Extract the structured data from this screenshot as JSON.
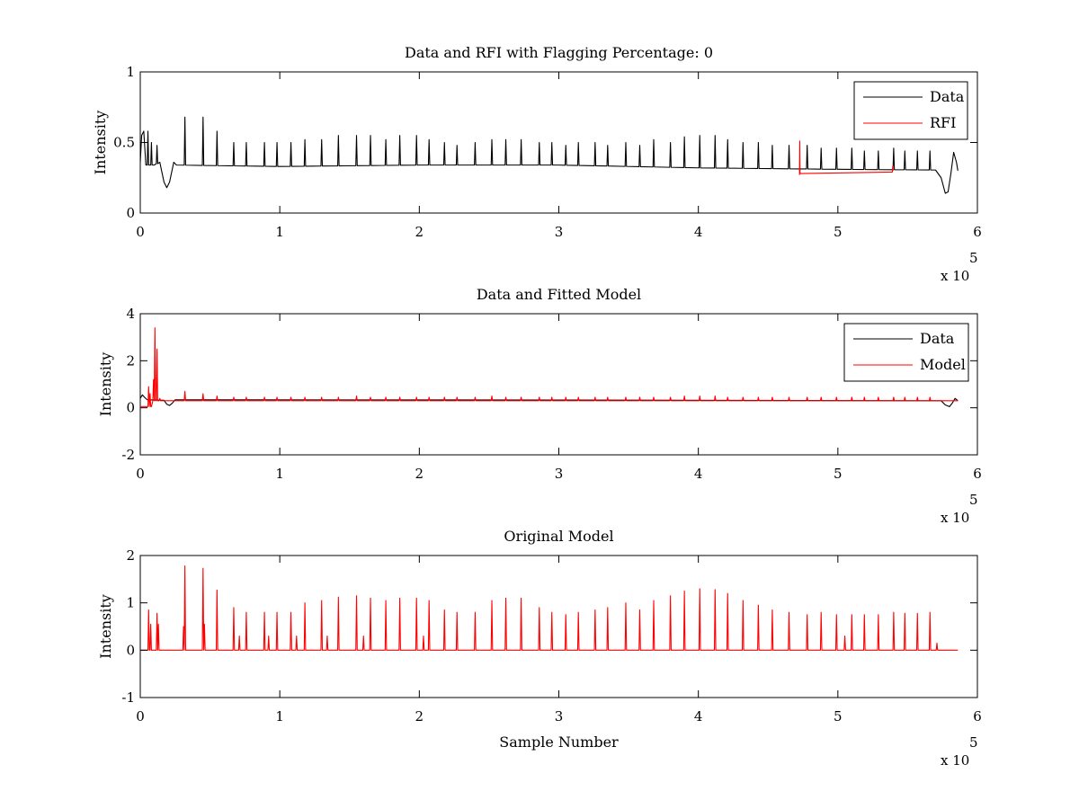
{
  "chart_data": [
    {
      "type": "line",
      "title": "Data and RFI with Flagging Percentage: 0",
      "xlabel": "",
      "ylabel": "Intensity",
      "xlim": [
        0,
        600000
      ],
      "ylim": [
        0,
        1
      ],
      "x_ticks": [
        0,
        1,
        2,
        3,
        4,
        5,
        6
      ],
      "x_tick_labels": [
        "0",
        "1",
        "2",
        "3",
        "4",
        "5",
        "6"
      ],
      "y_ticks": [
        0,
        0.5,
        1
      ],
      "y_tick_labels": [
        "0",
        "0.5",
        "1"
      ],
      "x_multiplier_label": "x 10",
      "x_multiplier_exponent": "5",
      "legend": {
        "placement": "top-right",
        "entries": [
          "Data",
          "RFI"
        ]
      },
      "series": [
        {
          "name": "Data",
          "color": "#000000",
          "baseline": [
            [
              0,
              0.36
            ],
            [
              1000,
              0.55
            ],
            [
              2500,
              0.58
            ],
            [
              4000,
              0.34
            ],
            [
              10000,
              0.34
            ],
            [
              14000,
              0.36
            ],
            [
              17000,
              0.22
            ],
            [
              19000,
              0.18
            ],
            [
              21000,
              0.22
            ],
            [
              24000,
              0.36
            ],
            [
              26000,
              0.34
            ],
            [
              100000,
              0.33
            ],
            [
              200000,
              0.34
            ],
            [
              300000,
              0.34
            ],
            [
              400000,
              0.32
            ],
            [
              500000,
              0.31
            ],
            [
              570000,
              0.305
            ],
            [
              574000,
              0.25
            ],
            [
              577000,
              0.14
            ],
            [
              579000,
              0.15
            ],
            [
              581000,
              0.28
            ],
            [
              583000,
              0.43
            ],
            [
              585000,
              0.36
            ],
            [
              586000,
              0.3
            ]
          ],
          "spikes": [
            [
              5500,
              0.58
            ],
            [
              8000,
              0.5
            ],
            [
              12000,
              0.48
            ],
            [
              32000,
              0.68
            ],
            [
              45000,
              0.68
            ],
            [
              55000,
              0.58
            ],
            [
              67000,
              0.5
            ],
            [
              76000,
              0.5
            ],
            [
              89000,
              0.5
            ],
            [
              98000,
              0.5
            ],
            [
              108000,
              0.5
            ],
            [
              118000,
              0.52
            ],
            [
              130000,
              0.52
            ],
            [
              142000,
              0.55
            ],
            [
              155000,
              0.55
            ],
            [
              165000,
              0.55
            ],
            [
              176000,
              0.52
            ],
            [
              186000,
              0.55
            ],
            [
              198000,
              0.55
            ],
            [
              207000,
              0.52
            ],
            [
              218000,
              0.5
            ],
            [
              227000,
              0.48
            ],
            [
              240000,
              0.5
            ],
            [
              252000,
              0.52
            ],
            [
              262000,
              0.52
            ],
            [
              273000,
              0.52
            ],
            [
              286000,
              0.5
            ],
            [
              295000,
              0.5
            ],
            [
              305000,
              0.48
            ],
            [
              314000,
              0.5
            ],
            [
              326000,
              0.5
            ],
            [
              335000,
              0.48
            ],
            [
              348000,
              0.5
            ],
            [
              358000,
              0.48
            ],
            [
              368000,
              0.52
            ],
            [
              380000,
              0.5
            ],
            [
              390000,
              0.54
            ],
            [
              401000,
              0.55
            ],
            [
              412000,
              0.55
            ],
            [
              421000,
              0.52
            ],
            [
              432000,
              0.5
            ],
            [
              443000,
              0.5
            ],
            [
              453000,
              0.48
            ],
            [
              465000,
              0.48
            ],
            [
              478000,
              0.48
            ],
            [
              488000,
              0.46
            ],
            [
              499000,
              0.46
            ],
            [
              510000,
              0.46
            ],
            [
              519000,
              0.44
            ],
            [
              529000,
              0.44
            ],
            [
              540000,
              0.46
            ],
            [
              548000,
              0.44
            ],
            [
              557000,
              0.44
            ],
            [
              566000,
              0.44
            ]
          ]
        },
        {
          "name": "RFI",
          "color": "#ff0000",
          "points": [
            [
              472500,
              0.27
            ],
            [
              472700,
              0.51
            ],
            [
              472900,
              0.28
            ],
            [
              539000,
              0.29
            ],
            [
              539300,
              0.33
            ],
            [
              539600,
              0.3
            ]
          ]
        }
      ]
    },
    {
      "type": "line",
      "title": "Data and Fitted Model",
      "xlabel": "",
      "ylabel": "Intensity",
      "xlim": [
        0,
        600000
      ],
      "ylim": [
        -2,
        4
      ],
      "x_ticks": [
        0,
        1,
        2,
        3,
        4,
        5,
        6
      ],
      "x_tick_labels": [
        "0",
        "1",
        "2",
        "3",
        "4",
        "5",
        "6"
      ],
      "y_ticks": [
        -2,
        0,
        2,
        4
      ],
      "y_tick_labels": [
        "-2",
        "0",
        "2",
        "4"
      ],
      "x_multiplier_label": "x 10",
      "x_multiplier_exponent": "5",
      "legend": {
        "placement": "top-right",
        "entries": [
          "Data",
          "Model"
        ]
      },
      "series": [
        {
          "name": "Data",
          "color": "#000000",
          "baseline": [
            [
              0,
              0.4
            ],
            [
              1500,
              0.55
            ],
            [
              3000,
              0.45
            ],
            [
              5000,
              0.34
            ],
            [
              17000,
              0.32
            ],
            [
              19000,
              0.15
            ],
            [
              21000,
              0.1
            ],
            [
              23000,
              0.2
            ],
            [
              25000,
              0.34
            ],
            [
              300000,
              0.33
            ],
            [
              574000,
              0.3
            ],
            [
              577000,
              0.12
            ],
            [
              580000,
              0.05
            ],
            [
              582000,
              0.2
            ],
            [
              584000,
              0.4
            ],
            [
              586000,
              0.3
            ]
          ]
        },
        {
          "name": "Model",
          "color": "#ff0000",
          "baseline": [
            [
              0,
              0.05
            ],
            [
              8000,
              0.05
            ],
            [
              9000,
              0.3
            ],
            [
              586000,
              0.3
            ]
          ],
          "spikes": [
            [
              6000,
              0.9
            ],
            [
              7000,
              0.6
            ],
            [
              9500,
              1.2
            ],
            [
              10500,
              3.4
            ],
            [
              12000,
              2.5
            ],
            [
              14000,
              0.4
            ],
            [
              32000,
              0.7
            ],
            [
              45000,
              0.6
            ],
            [
              55000,
              0.5
            ],
            [
              67000,
              0.45
            ],
            [
              76000,
              0.45
            ],
            [
              89000,
              0.45
            ],
            [
              98000,
              0.45
            ],
            [
              108000,
              0.45
            ],
            [
              118000,
              0.45
            ],
            [
              130000,
              0.45
            ],
            [
              142000,
              0.45
            ],
            [
              155000,
              0.5
            ],
            [
              165000,
              0.45
            ],
            [
              176000,
              0.45
            ],
            [
              186000,
              0.45
            ],
            [
              198000,
              0.45
            ],
            [
              207000,
              0.45
            ],
            [
              218000,
              0.45
            ],
            [
              227000,
              0.45
            ],
            [
              240000,
              0.45
            ],
            [
              252000,
              0.5
            ],
            [
              262000,
              0.45
            ],
            [
              273000,
              0.45
            ],
            [
              286000,
              0.45
            ],
            [
              295000,
              0.45
            ],
            [
              305000,
              0.45
            ],
            [
              314000,
              0.45
            ],
            [
              326000,
              0.45
            ],
            [
              335000,
              0.45
            ],
            [
              348000,
              0.45
            ],
            [
              358000,
              0.45
            ],
            [
              368000,
              0.45
            ],
            [
              380000,
              0.45
            ],
            [
              390000,
              0.5
            ],
            [
              401000,
              0.5
            ],
            [
              412000,
              0.5
            ],
            [
              421000,
              0.45
            ],
            [
              432000,
              0.45
            ],
            [
              443000,
              0.45
            ],
            [
              453000,
              0.45
            ],
            [
              465000,
              0.45
            ],
            [
              478000,
              0.45
            ],
            [
              488000,
              0.45
            ],
            [
              499000,
              0.45
            ],
            [
              510000,
              0.45
            ],
            [
              519000,
              0.45
            ],
            [
              529000,
              0.45
            ],
            [
              540000,
              0.45
            ],
            [
              548000,
              0.45
            ],
            [
              557000,
              0.45
            ],
            [
              566000,
              0.45
            ]
          ]
        }
      ]
    },
    {
      "type": "line",
      "title": "Original Model",
      "xlabel": "Sample Number",
      "ylabel": "Intensity",
      "xlim": [
        0,
        600000
      ],
      "ylim": [
        -1,
        2
      ],
      "x_ticks": [
        0,
        1,
        2,
        3,
        4,
        5,
        6
      ],
      "x_tick_labels": [
        "0",
        "1",
        "2",
        "3",
        "4",
        "5",
        "6"
      ],
      "y_ticks": [
        -1,
        0,
        1,
        2
      ],
      "y_tick_labels": [
        "-1",
        "0",
        "1",
        "2"
      ],
      "x_multiplier_label": "x 10",
      "x_multiplier_exponent": "5",
      "series": [
        {
          "name": "",
          "color": "#ff0000",
          "baseline": [
            [
              0,
              0
            ],
            [
              586000,
              0
            ]
          ],
          "spikes": [
            [
              6000,
              0.85
            ],
            [
              7500,
              0.55
            ],
            [
              12000,
              0.78
            ],
            [
              13000,
              0.55
            ],
            [
              31000,
              0.5
            ],
            [
              32000,
              1.78
            ],
            [
              45000,
              1.73
            ],
            [
              46000,
              0.55
            ],
            [
              55000,
              1.27
            ],
            [
              67000,
              0.9
            ],
            [
              71000,
              0.3
            ],
            [
              76000,
              0.8
            ],
            [
              89000,
              0.8
            ],
            [
              92000,
              0.3
            ],
            [
              98000,
              0.8
            ],
            [
              108000,
              0.8
            ],
            [
              112000,
              0.3
            ],
            [
              118000,
              1.0
            ],
            [
              130000,
              1.05
            ],
            [
              134000,
              0.3
            ],
            [
              142000,
              1.12
            ],
            [
              155000,
              1.15
            ],
            [
              160000,
              0.3
            ],
            [
              165000,
              1.1
            ],
            [
              176000,
              1.05
            ],
            [
              186000,
              1.1
            ],
            [
              198000,
              1.1
            ],
            [
              203000,
              0.3
            ],
            [
              207000,
              1.05
            ],
            [
              218000,
              0.85
            ],
            [
              227000,
              0.8
            ],
            [
              240000,
              0.8
            ],
            [
              252000,
              1.05
            ],
            [
              262000,
              1.1
            ],
            [
              273000,
              1.1
            ],
            [
              286000,
              0.9
            ],
            [
              295000,
              0.8
            ],
            [
              305000,
              0.75
            ],
            [
              314000,
              0.8
            ],
            [
              326000,
              0.85
            ],
            [
              335000,
              0.9
            ],
            [
              348000,
              1.0
            ],
            [
              358000,
              0.85
            ],
            [
              368000,
              1.05
            ],
            [
              380000,
              1.15
            ],
            [
              390000,
              1.25
            ],
            [
              401000,
              1.3
            ],
            [
              412000,
              1.28
            ],
            [
              421000,
              1.2
            ],
            [
              432000,
              1.05
            ],
            [
              443000,
              0.95
            ],
            [
              453000,
              0.85
            ],
            [
              465000,
              0.8
            ],
            [
              478000,
              0.75
            ],
            [
              488000,
              0.8
            ],
            [
              499000,
              0.75
            ],
            [
              505000,
              0.3
            ],
            [
              510000,
              0.75
            ],
            [
              519000,
              0.75
            ],
            [
              529000,
              0.75
            ],
            [
              540000,
              0.8
            ],
            [
              548000,
              0.78
            ],
            [
              557000,
              0.78
            ],
            [
              566000,
              0.8
            ],
            [
              571000,
              0.15
            ]
          ]
        }
      ]
    }
  ]
}
